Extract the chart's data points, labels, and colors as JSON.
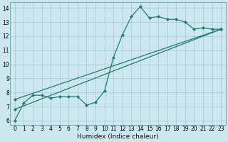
{
  "xlabel": "Humidex (Indice chaleur)",
  "background_color": "#cce8ee",
  "grid_color": "#aacdd6",
  "line_color": "#1e7b72",
  "xlim": [
    -0.5,
    23.5
  ],
  "ylim": [
    5.7,
    14.4
  ],
  "xtick_labels": [
    "0",
    "1",
    "2",
    "3",
    "4",
    "5",
    "6",
    "7",
    "8",
    "9",
    "10",
    "11",
    "12",
    "13",
    "14",
    "15",
    "16",
    "17",
    "18",
    "19",
    "20",
    "21",
    "22",
    "23"
  ],
  "xtick_values": [
    0,
    1,
    2,
    3,
    4,
    5,
    6,
    7,
    8,
    9,
    10,
    11,
    12,
    13,
    14,
    15,
    16,
    17,
    18,
    19,
    20,
    21,
    22,
    23
  ],
  "ytick_values": [
    6,
    7,
    8,
    9,
    10,
    11,
    12,
    13,
    14
  ],
  "line1_x": [
    0,
    1,
    2,
    3,
    4,
    5,
    6,
    7,
    8,
    9,
    10,
    11,
    12,
    13,
    14,
    15,
    16,
    17,
    18,
    19,
    20,
    21,
    22,
    23
  ],
  "line1_y": [
    6.0,
    7.25,
    7.8,
    7.8,
    7.6,
    7.7,
    7.7,
    7.7,
    7.1,
    7.3,
    8.1,
    10.5,
    12.1,
    13.4,
    14.1,
    13.3,
    13.4,
    13.2,
    13.2,
    13.0,
    12.5,
    12.6,
    12.5,
    12.5
  ],
  "line2_x": [
    0,
    23
  ],
  "line2_y": [
    6.8,
    12.5
  ],
  "line3_x": [
    0,
    23
  ],
  "line3_y": [
    7.5,
    12.5
  ],
  "markersize": 2.2,
  "linewidth": 0.9,
  "tick_fontsize": 5.5,
  "xlabel_fontsize": 6.5
}
